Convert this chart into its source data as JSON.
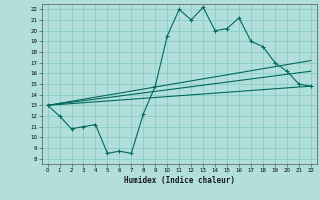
{
  "xlabel": "Humidex (Indice chaleur)",
  "bg_color": "#b2dfdb",
  "grid_color": "#80cbc4",
  "line_color": "#00695c",
  "xlim": [
    -0.5,
    22.5
  ],
  "ylim": [
    7.5,
    22.5
  ],
  "x_ticks": [
    0,
    1,
    2,
    3,
    4,
    5,
    6,
    7,
    8,
    9,
    10,
    11,
    12,
    13,
    14,
    15,
    16,
    17,
    18,
    19,
    20,
    21,
    22
  ],
  "y_ticks": [
    8,
    9,
    10,
    11,
    12,
    13,
    14,
    15,
    16,
    17,
    18,
    19,
    20,
    21,
    22
  ],
  "lines": [
    {
      "x": [
        0,
        1,
        2,
        3,
        4,
        5,
        6,
        7,
        8,
        9,
        10,
        11,
        12,
        13,
        14,
        15,
        16,
        17,
        18,
        19,
        20,
        21,
        22
      ],
      "y": [
        13,
        12,
        10.8,
        11,
        11.2,
        8.5,
        8.7,
        8.5,
        12.2,
        14.8,
        19.5,
        22,
        21,
        22.2,
        20,
        20.2,
        21.2,
        19,
        18.5,
        17,
        16.2,
        15,
        14.8
      ],
      "marker": true
    },
    {
      "x": [
        0,
        22
      ],
      "y": [
        13,
        17.2
      ],
      "marker": false
    },
    {
      "x": [
        0,
        22
      ],
      "y": [
        13,
        16.2
      ],
      "marker": false
    },
    {
      "x": [
        0,
        22
      ],
      "y": [
        13,
        14.8
      ],
      "marker": false
    }
  ]
}
